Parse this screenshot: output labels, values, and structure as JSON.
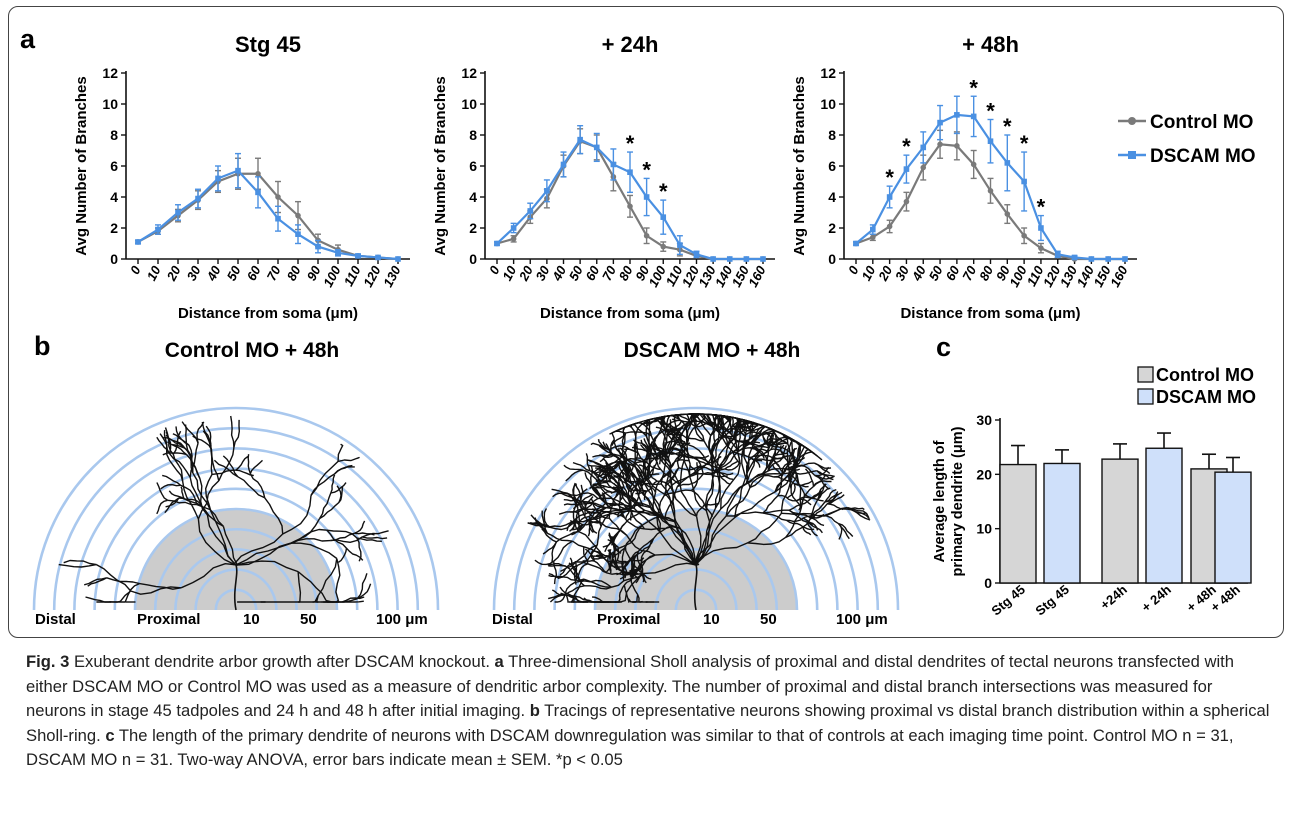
{
  "panel_letters": {
    "a": "a",
    "b": "b",
    "c": "c"
  },
  "colors": {
    "control": "#7a7a7a",
    "dscam": "#4a90e2",
    "bar_control": "#d6d6d6",
    "bar_dscam": "#cfe0fa",
    "ring": "#a9c8ee",
    "proximal": "#cccccc"
  },
  "panel_a": {
    "legend": {
      "control": "Control MO",
      "dscam": "DSCAM MO"
    }
  },
  "chart_data": [
    {
      "type": "line",
      "title": "Stg 45",
      "xlabel": "Distance from soma (μm)",
      "ylabel": "Avg Number of Branches",
      "ylim": [
        0,
        12
      ],
      "yticks": [
        0,
        2,
        4,
        6,
        8,
        10,
        12
      ],
      "x": [
        0,
        10,
        20,
        30,
        40,
        50,
        60,
        70,
        80,
        90,
        100,
        110,
        120,
        130
      ],
      "series": [
        {
          "name": "Control MO",
          "values": [
            1.1,
            1.8,
            2.8,
            3.8,
            5.0,
            5.5,
            5.5,
            4.0,
            2.8,
            1.2,
            0.6,
            0.2,
            0.1,
            0.0
          ],
          "errors": [
            0.1,
            0.2,
            0.4,
            0.6,
            0.7,
            1.0,
            1.0,
            1.0,
            0.9,
            0.4,
            0.3,
            0.1,
            0.05,
            0.0
          ]
        },
        {
          "name": "DSCAM MO",
          "values": [
            1.1,
            1.9,
            3.0,
            3.9,
            5.2,
            5.7,
            4.3,
            2.6,
            1.6,
            0.8,
            0.4,
            0.2,
            0.1,
            0.0
          ],
          "errors": [
            0.1,
            0.3,
            0.5,
            0.6,
            0.8,
            1.1,
            1.0,
            0.8,
            0.6,
            0.4,
            0.2,
            0.1,
            0.05,
            0.0
          ]
        }
      ],
      "significant_x": []
    },
    {
      "type": "line",
      "title": "+ 24h",
      "xlabel": "Distance from soma (μm)",
      "ylabel": "Avg Number of Branches",
      "ylim": [
        0,
        12
      ],
      "yticks": [
        0,
        2,
        4,
        6,
        8,
        10,
        12
      ],
      "x": [
        0,
        10,
        20,
        30,
        40,
        50,
        60,
        70,
        80,
        90,
        100,
        110,
        120,
        130,
        140,
        150,
        160
      ],
      "series": [
        {
          "name": "Control MO",
          "values": [
            1.0,
            1.3,
            2.7,
            3.9,
            6.0,
            7.6,
            7.2,
            5.3,
            3.4,
            1.5,
            0.8,
            0.6,
            0.2,
            0.0,
            0.0,
            0.0,
            0.0
          ],
          "errors": [
            0.1,
            0.2,
            0.4,
            0.6,
            0.7,
            0.8,
            0.8,
            0.9,
            0.7,
            0.5,
            0.3,
            0.4,
            0.1,
            0.0,
            0.0,
            0.0,
            0.0
          ]
        },
        {
          "name": "DSCAM MO",
          "values": [
            1.0,
            2.0,
            3.1,
            4.4,
            6.1,
            7.7,
            7.2,
            6.1,
            5.6,
            4.0,
            2.7,
            0.9,
            0.3,
            0.0,
            0.0,
            0.0,
            0.0
          ],
          "errors": [
            0.1,
            0.3,
            0.5,
            0.7,
            0.8,
            0.9,
            0.9,
            1.0,
            1.3,
            1.2,
            1.1,
            0.6,
            0.2,
            0.0,
            0.0,
            0.0,
            0.0
          ]
        }
      ],
      "significant_x": [
        80,
        90,
        100
      ]
    },
    {
      "type": "line",
      "title": "+ 48h",
      "xlabel": "Distance from soma (μm)",
      "ylabel": "Avg Number of Branches",
      "ylim": [
        0,
        12
      ],
      "yticks": [
        0,
        2,
        4,
        6,
        8,
        10,
        12
      ],
      "x": [
        0,
        10,
        20,
        30,
        40,
        50,
        60,
        70,
        80,
        90,
        100,
        110,
        120,
        130,
        140,
        150,
        160
      ],
      "series": [
        {
          "name": "Control MO",
          "values": [
            1.0,
            1.4,
            2.1,
            3.7,
            5.9,
            7.4,
            7.3,
            6.1,
            4.4,
            2.9,
            1.5,
            0.7,
            0.2,
            0.0,
            0.0,
            0.0,
            0.0
          ],
          "errors": [
            0.1,
            0.2,
            0.4,
            0.6,
            0.8,
            0.9,
            0.9,
            0.9,
            0.8,
            0.6,
            0.5,
            0.3,
            0.1,
            0.0,
            0.0,
            0.0,
            0.0
          ]
        },
        {
          "name": "DSCAM MO",
          "values": [
            1.0,
            1.9,
            4.0,
            5.8,
            7.2,
            8.8,
            9.3,
            9.2,
            7.6,
            6.2,
            5.0,
            2.0,
            0.3,
            0.1,
            0.0,
            0.0,
            0.0
          ],
          "errors": [
            0.1,
            0.3,
            0.7,
            0.9,
            1.0,
            1.1,
            1.2,
            1.3,
            1.4,
            1.8,
            1.9,
            0.8,
            0.2,
            0.1,
            0.0,
            0.0,
            0.0
          ]
        }
      ],
      "significant_x": [
        20,
        30,
        70,
        80,
        90,
        100,
        110
      ]
    },
    {
      "type": "bar",
      "title": "",
      "ylabel": "Average length of primary dendrite (μm)",
      "ylim": [
        0,
        30
      ],
      "yticks": [
        0,
        10,
        20,
        30
      ],
      "categories": [
        "Stg 45",
        "Stg 45",
        "+24h",
        "+ 24h",
        "+ 48h",
        "+ 48h"
      ],
      "groups": [
        "Control MO",
        "DSCAM MO",
        "Control MO",
        "DSCAM MO",
        "Control MO",
        "DSCAM MO"
      ],
      "values": [
        21.8,
        22.0,
        22.8,
        24.8,
        21.0,
        20.4
      ],
      "errors": [
        3.5,
        2.5,
        2.8,
        2.8,
        2.7,
        2.7
      ],
      "legend": [
        "Control MO",
        "DSCAM MO"
      ],
      "legend_position": "top-right"
    }
  ],
  "panel_b": {
    "left_title": "Control MO + 48h",
    "right_title": "DSCAM MO + 48h",
    "labels": {
      "distal": "Distal",
      "proximal": "Proximal",
      "r10": "10",
      "r50": "50",
      "r100": "100 μm"
    }
  },
  "caption": {
    "fig_label": "Fig. 3",
    "title": " Exuberant dendrite arbor growth after DSCAM knockout. ",
    "a_letter": "a",
    "a_text": " Three-dimensional Sholl analysis of proximal and distal dendrites of tectal neurons transfected with either DSCAM MO or Control MO was used as a measure of dendritic arbor complexity. The number of proximal and distal branch intersections was measured for neurons in stage 45 tadpoles and 24 h and 48 h after initial imaging. ",
    "b_letter": "b",
    "b_text": " Tracings of representative neurons showing proximal vs distal branch distribution within a spherical Sholl-ring. ",
    "c_letter": "c",
    "c_text": " The length of the primary dendrite of neurons with DSCAM downregulation was similar to that of controls at each imaging time point. Control MO n = 31, DSCAM MO n = 31. Two-way ANOVA, error bars indicate mean ± SEM. *p < 0.05"
  }
}
